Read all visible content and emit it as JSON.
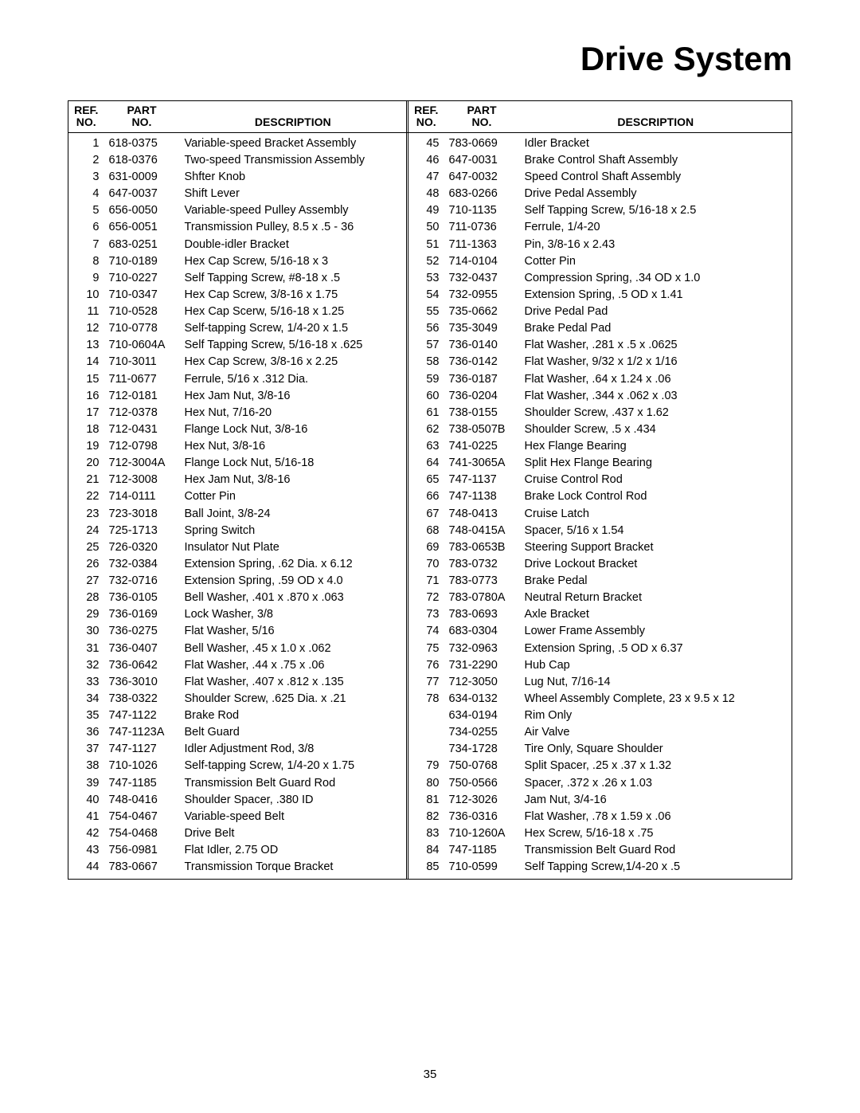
{
  "title": "Drive System",
  "page_number": "35",
  "headers": {
    "ref_line1": "REF.",
    "ref_line2": "NO.",
    "part_line1": "PART",
    "part_line2": "NO.",
    "desc_line2": "DESCRIPTION"
  },
  "left_rows": [
    {
      "ref": "1",
      "part": "618-0375",
      "desc": "Variable-speed Bracket Assembly"
    },
    {
      "ref": "2",
      "part": "618-0376",
      "desc": "Two-speed Transmission Assembly"
    },
    {
      "ref": "3",
      "part": "631-0009",
      "desc": "Shfter Knob"
    },
    {
      "ref": "4",
      "part": "647-0037",
      "desc": "Shift Lever"
    },
    {
      "ref": "5",
      "part": "656-0050",
      "desc": "Variable-speed Pulley Assembly"
    },
    {
      "ref": "6",
      "part": "656-0051",
      "desc": "Transmission Pulley, 8.5 x .5 - 36"
    },
    {
      "ref": "7",
      "part": "683-0251",
      "desc": "Double-idler Bracket"
    },
    {
      "ref": "8",
      "part": "710-0189",
      "desc": "Hex Cap Screw, 5/16-18 x 3"
    },
    {
      "ref": "9",
      "part": "710-0227",
      "desc": "Self Tapping Screw, #8-18 x .5"
    },
    {
      "ref": "10",
      "part": "710-0347",
      "desc": "Hex Cap Screw, 3/8-16 x 1.75"
    },
    {
      "ref": "11",
      "part": "710-0528",
      "desc": "Hex Cap Scerw, 5/16-18 x 1.25"
    },
    {
      "ref": "12",
      "part": "710-0778",
      "desc": "Self-tapping Screw, 1/4-20 x 1.5"
    },
    {
      "ref": "13",
      "part": "710-0604A",
      "desc": "Self Tapping Screw, 5/16-18 x .625"
    },
    {
      "ref": "14",
      "part": "710-3011",
      "desc": "Hex Cap Screw, 3/8-16 x 2.25"
    },
    {
      "ref": "15",
      "part": "711-0677",
      "desc": "Ferrule, 5/16 x .312 Dia."
    },
    {
      "ref": "16",
      "part": "712-0181",
      "desc": "Hex Jam Nut, 3/8-16"
    },
    {
      "ref": "17",
      "part": "712-0378",
      "desc": "Hex Nut, 7/16-20"
    },
    {
      "ref": "18",
      "part": "712-0431",
      "desc": "Flange Lock Nut, 3/8-16"
    },
    {
      "ref": "19",
      "part": "712-0798",
      "desc": "Hex Nut, 3/8-16"
    },
    {
      "ref": "20",
      "part": "712-3004A",
      "desc": "Flange Lock Nut, 5/16-18"
    },
    {
      "ref": "21",
      "part": "712-3008",
      "desc": "Hex Jam Nut, 3/8-16"
    },
    {
      "ref": "22",
      "part": "714-0111",
      "desc": "Cotter Pin"
    },
    {
      "ref": "23",
      "part": "723-3018",
      "desc": "Ball Joint, 3/8-24"
    },
    {
      "ref": "24",
      "part": "725-1713",
      "desc": "Spring Switch"
    },
    {
      "ref": "25",
      "part": "726-0320",
      "desc": "Insulator Nut Plate"
    },
    {
      "ref": "26",
      "part": "732-0384",
      "desc": "Extension Spring, .62 Dia. x 6.12"
    },
    {
      "ref": "27",
      "part": "732-0716",
      "desc": "Extension Spring, .59 OD x 4.0"
    },
    {
      "ref": "28",
      "part": "736-0105",
      "desc": "Bell Washer, .401 x .870 x .063"
    },
    {
      "ref": "29",
      "part": "736-0169",
      "desc": "Lock Washer, 3/8"
    },
    {
      "ref": "30",
      "part": "736-0275",
      "desc": "Flat Washer, 5/16"
    },
    {
      "ref": "31",
      "part": "736-0407",
      "desc": "Bell Washer, .45 x 1.0 x .062"
    },
    {
      "ref": "32",
      "part": "736-0642",
      "desc": "Flat Washer, .44 x .75 x .06"
    },
    {
      "ref": "33",
      "part": "736-3010",
      "desc": "Flat Washer, .407 x .812 x .135"
    },
    {
      "ref": "34",
      "part": "738-0322",
      "desc": "Shoulder Screw, .625 Dia. x .21"
    },
    {
      "ref": "35",
      "part": "747-1122",
      "desc": "Brake Rod"
    },
    {
      "ref": "36",
      "part": "747-1123A",
      "desc": "Belt Guard"
    },
    {
      "ref": "37",
      "part": "747-1127",
      "desc": "Idler Adjustment Rod, 3/8"
    },
    {
      "ref": "38",
      "part": "710-1026",
      "desc": "Self-tapping Screw, 1/4-20 x 1.75"
    },
    {
      "ref": "39",
      "part": "747-1185",
      "desc": "Transmission Belt Guard Rod"
    },
    {
      "ref": "40",
      "part": "748-0416",
      "desc": "Shoulder Spacer, .380 ID"
    },
    {
      "ref": "41",
      "part": "754-0467",
      "desc": "Variable-speed Belt"
    },
    {
      "ref": "42",
      "part": "754-0468",
      "desc": "Drive Belt"
    },
    {
      "ref": "43",
      "part": "756-0981",
      "desc": "Flat Idler, 2.75 OD"
    },
    {
      "ref": "44",
      "part": "783-0667",
      "desc": "Transmission Torque Bracket"
    }
  ],
  "right_rows": [
    {
      "ref": "45",
      "part": "783-0669",
      "desc": "Idler Bracket"
    },
    {
      "ref": "46",
      "part": "647-0031",
      "desc": "Brake Control Shaft Assembly"
    },
    {
      "ref": "47",
      "part": "647-0032",
      "desc": "Speed Control Shaft Assembly"
    },
    {
      "ref": "48",
      "part": "683-0266",
      "desc": "Drive Pedal Assembly"
    },
    {
      "ref": "49",
      "part": "710-1135",
      "desc": "Self Tapping Screw, 5/16-18 x 2.5"
    },
    {
      "ref": "50",
      "part": "711-0736",
      "desc": "Ferrule, 1/4-20"
    },
    {
      "ref": "51",
      "part": "711-1363",
      "desc": "Pin, 3/8-16 x 2.43"
    },
    {
      "ref": "52",
      "part": "714-0104",
      "desc": "Cotter Pin"
    },
    {
      "ref": "53",
      "part": "732-0437",
      "desc": "Compression Spring, .34 OD x 1.0"
    },
    {
      "ref": "54",
      "part": "732-0955",
      "desc": "Extension Spring, .5 OD x 1.41"
    },
    {
      "ref": "55",
      "part": "735-0662",
      "desc": "Drive Pedal Pad"
    },
    {
      "ref": "56",
      "part": "735-3049",
      "desc": "Brake Pedal Pad"
    },
    {
      "ref": "57",
      "part": "736-0140",
      "desc": "Flat Washer, .281 x .5 x .0625"
    },
    {
      "ref": "58",
      "part": "736-0142",
      "desc": "Flat Washer, 9/32 x 1/2 x 1/16"
    },
    {
      "ref": "59",
      "part": "736-0187",
      "desc": "Flat Washer, .64 x 1.24 x .06"
    },
    {
      "ref": "60",
      "part": "736-0204",
      "desc": "Flat Washer, .344 x .062 x .03"
    },
    {
      "ref": "61",
      "part": "738-0155",
      "desc": "Shoulder Screw, .437 x 1.62"
    },
    {
      "ref": "62",
      "part": "738-0507B",
      "desc": "Shoulder Screw, .5 x .434"
    },
    {
      "ref": "63",
      "part": "741-0225",
      "desc": "Hex Flange Bearing"
    },
    {
      "ref": "64",
      "part": "741-3065A",
      "desc": "Split Hex Flange Bearing"
    },
    {
      "ref": "65",
      "part": "747-1137",
      "desc": "Cruise Control Rod"
    },
    {
      "ref": "66",
      "part": "747-1138",
      "desc": "Brake Lock Control Rod"
    },
    {
      "ref": "67",
      "part": "748-0413",
      "desc": "Cruise Latch"
    },
    {
      "ref": "68",
      "part": "748-0415A",
      "desc": "Spacer, 5/16 x 1.54"
    },
    {
      "ref": "69",
      "part": "783-0653B",
      "desc": "Steering Support Bracket"
    },
    {
      "ref": "70",
      "part": "783-0732",
      "desc": "Drive Lockout Bracket"
    },
    {
      "ref": "71",
      "part": "783-0773",
      "desc": "Brake Pedal"
    },
    {
      "ref": "72",
      "part": "783-0780A",
      "desc": "Neutral Return Bracket"
    },
    {
      "ref": "73",
      "part": "783-0693",
      "desc": "Axle Bracket"
    },
    {
      "ref": "74",
      "part": "683-0304",
      "desc": "Lower Frame Assembly"
    },
    {
      "ref": "75",
      "part": "732-0963",
      "desc": "Extension Spring, .5 OD x 6.37"
    },
    {
      "ref": "76",
      "part": "731-2290",
      "desc": "Hub Cap"
    },
    {
      "ref": "77",
      "part": "712-3050",
      "desc": "Lug Nut, 7/16-14"
    },
    {
      "ref": "78",
      "part": "634-0132",
      "desc": "Wheel Assembly Complete, 23 x 9.5 x 12"
    },
    {
      "ref": "",
      "part": "634-0194",
      "desc": "Rim Only"
    },
    {
      "ref": "",
      "part": "734-0255",
      "desc": "Air Valve"
    },
    {
      "ref": "",
      "part": "734-1728",
      "desc": "Tire Only, Square Shoulder"
    },
    {
      "ref": "79",
      "part": "750-0768",
      "desc": "Split Spacer, .25 x .37 x 1.32"
    },
    {
      "ref": "80",
      "part": "750-0566",
      "desc": "Spacer, .372 x .26 x 1.03"
    },
    {
      "ref": "81",
      "part": "712-3026",
      "desc": "Jam Nut, 3/4-16"
    },
    {
      "ref": "82",
      "part": "736-0316",
      "desc": "Flat Washer, .78 x 1.59 x .06"
    },
    {
      "ref": "83",
      "part": "710-1260A",
      "desc": "Hex Screw, 5/16-18 x .75"
    },
    {
      "ref": "84",
      "part": "747-1185",
      "desc": "Transmission Belt Guard Rod"
    },
    {
      "ref": "85",
      "part": "710-0599",
      "desc": "Self Tapping Screw,1/4-20 x .5"
    }
  ]
}
